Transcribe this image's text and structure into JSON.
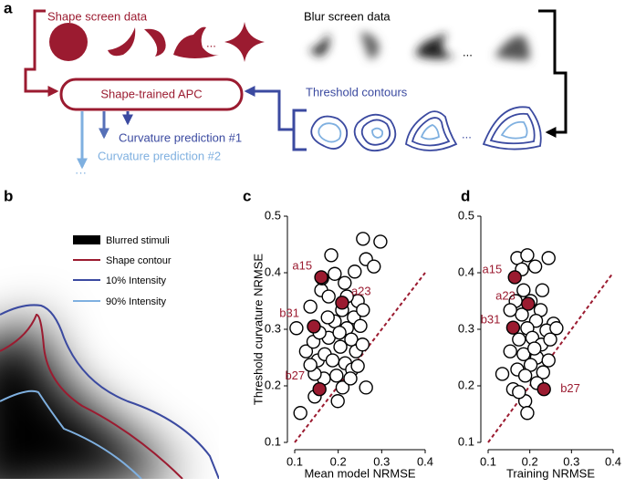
{
  "panel_a": {
    "label": "a",
    "shape_screen_data": "Shape screen data",
    "blur_screen_data": "Blur screen data",
    "model": "Shape-trained APC",
    "threshold_contours": "Threshold contours",
    "prediction_1": "Curvature prediction #1",
    "prediction_2": "Curvature prediction #2",
    "ellipsis": "...",
    "more": "···"
  },
  "panel_b": {
    "label": "b",
    "legend": [
      "Blurred stimuli",
      "Shape contour",
      "10% Intensity",
      "90% Intensity"
    ]
  },
  "chart_data": [
    {
      "type": "scatter",
      "label": "c",
      "xlabel": "Mean model NRMSE",
      "ylabel": "Threshold curvature NRMSE",
      "xlim": [
        0.1,
        0.4
      ],
      "ylim": [
        0.1,
        0.5
      ],
      "xticks": [
        0.1,
        0.2,
        0.3,
        0.4
      ],
      "yticks": [
        0.1,
        0.2,
        0.3,
        0.4,
        0.5
      ],
      "diagonal": true,
      "series": [
        {
          "color": "#ffffff",
          "x": [
            0.113,
            0.104,
            0.136,
            0.161,
            0.184,
            0.215,
            0.163,
            0.257,
            0.297,
            0.264,
            0.282,
            0.238,
            0.192,
            0.126,
            0.143,
            0.153,
            0.169,
            0.178,
            0.192,
            0.209,
            0.22,
            0.236,
            0.251,
            0.23,
            0.205,
            0.187,
            0.216,
            0.241,
            0.256,
            0.232,
            0.196,
            0.167,
            0.146,
            0.21,
            0.264,
            0.228,
            0.199,
            0.146,
            0.178,
            0.245,
            0.22,
            0.257,
            0.203,
            0.176,
            0.157,
            0.245,
            0.136
          ],
          "values": [
            0.152,
            0.302,
            0.34,
            0.369,
            0.431,
            0.382,
            0.39,
            0.46,
            0.455,
            0.424,
            0.411,
            0.402,
            0.398,
            0.261,
            0.278,
            0.245,
            0.256,
            0.285,
            0.314,
            0.334,
            0.302,
            0.321,
            0.306,
            0.282,
            0.269,
            0.245,
            0.24,
            0.261,
            0.273,
            0.229,
            0.218,
            0.213,
            0.221,
            0.197,
            0.197,
            0.213,
            0.173,
            0.181,
            0.358,
            0.35,
            0.358,
            0.334,
            0.294,
            0.321,
            0.294,
            0.235,
            0.237
          ]
        },
        {
          "color": "#9b1b30",
          "x": [
            0.161,
            0.209,
            0.144,
            0.157
          ],
          "values": [
            0.392,
            0.347,
            0.305,
            0.194
          ],
          "point_labels": [
            "a15",
            "a23",
            "b31",
            "b27"
          ]
        }
      ]
    },
    {
      "type": "scatter",
      "label": "d",
      "xlabel": "Training NRMSE",
      "xlim": [
        0.1,
        0.4
      ],
      "ylim": [
        0.1,
        0.5
      ],
      "xticks": [
        0.1,
        0.2,
        0.3,
        0.4
      ],
      "yticks": [
        0.1,
        0.2,
        0.3,
        0.4,
        0.5
      ],
      "diagonal": true,
      "series": [
        {
          "color": "#ffffff",
          "x": [
            0.17,
            0.194,
            0.213,
            0.245,
            0.181,
            0.23,
            0.202,
            0.226,
            0.181,
            0.166,
            0.257,
            0.24,
            0.215,
            0.194,
            0.174,
            0.206,
            0.228,
            0.249,
            0.153,
            0.185,
            0.217,
            0.245,
            0.17,
            0.202,
            0.232,
            0.134,
            0.16,
            0.189,
            0.194,
            0.217,
            0.264,
            0.185,
            0.153,
            0.211,
            0.189,
            0.174
          ],
          "values": [
            0.426,
            0.431,
            0.411,
            0.426,
            0.406,
            0.369,
            0.35,
            0.334,
            0.326,
            0.35,
            0.31,
            0.298,
            0.315,
            0.302,
            0.282,
            0.285,
            0.273,
            0.282,
            0.261,
            0.256,
            0.25,
            0.245,
            0.229,
            0.237,
            0.224,
            0.221,
            0.194,
            0.173,
            0.152,
            0.205,
            0.302,
            0.369,
            0.334,
            0.266,
            0.218,
            0.189
          ]
        },
        {
          "color": "#9b1b30",
          "x": [
            0.164,
            0.196,
            0.16,
            0.234
          ],
          "values": [
            0.392,
            0.345,
            0.303,
            0.194
          ],
          "point_labels": [
            "a15",
            "a23",
            "b31",
            "b27"
          ]
        }
      ]
    }
  ]
}
